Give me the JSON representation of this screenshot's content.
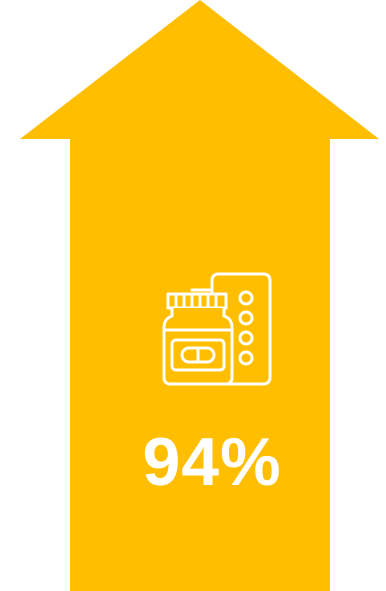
{
  "infographic": {
    "accent_color": "#FFBF00",
    "foreground_color": "#FFFFFF",
    "direction": "up",
    "icon": "medicine-bottle-and-pill-blister-icon",
    "value": "94%"
  }
}
